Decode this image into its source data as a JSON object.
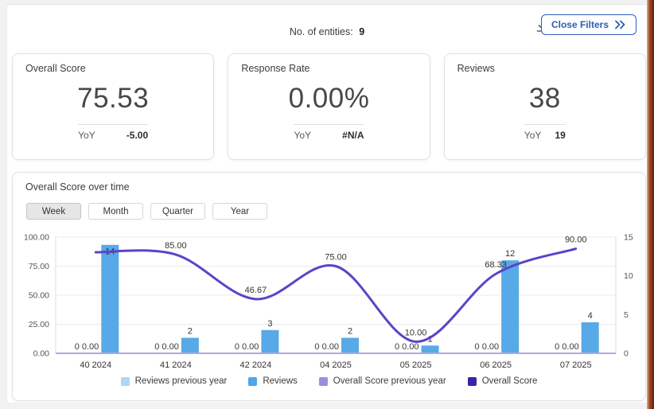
{
  "topbar": {
    "entities_label": "No. of entities:",
    "entities_value": "9",
    "close_filters_label": "Close Filters"
  },
  "kpis": [
    {
      "title": "Overall Score",
      "value": "75.53",
      "yoy_label": "YoY",
      "yoy_value": "-5.00"
    },
    {
      "title": "Response Rate",
      "value": "0.00%",
      "yoy_label": "YoY",
      "yoy_value": "#N/A"
    },
    {
      "title": "Reviews",
      "value": "38",
      "yoy_label": "YoY",
      "yoy_value": "19"
    }
  ],
  "chart_section": {
    "title": "Overall Score over time",
    "tabs": [
      {
        "label": "Week",
        "selected": true
      },
      {
        "label": "Month",
        "selected": false
      },
      {
        "label": "Quarter",
        "selected": false
      },
      {
        "label": "Year",
        "selected": false
      }
    ]
  },
  "chart_data": {
    "type": "combo",
    "categories": [
      "40 2024",
      "41 2024",
      "42 2024",
      "04 2025",
      "05 2025",
      "06 2025",
      "07 2025"
    ],
    "series": [
      {
        "name": "Reviews previous year",
        "type": "bar",
        "axis": "right",
        "values": [
          0,
          0,
          0,
          0,
          0,
          0,
          0
        ],
        "labels": [
          "0",
          "0",
          "0",
          "0",
          "0",
          "0",
          "0"
        ],
        "color": "#acd8f4"
      },
      {
        "name": "Reviews",
        "type": "bar",
        "axis": "right",
        "values": [
          14,
          2,
          3,
          2,
          1,
          12,
          4
        ],
        "labels": [
          "14",
          "2",
          "3",
          "2",
          "1",
          "12",
          "4"
        ],
        "color": "#58a9e7"
      },
      {
        "name": "Overall Score previous year",
        "type": "line",
        "axis": "left",
        "values": [
          0,
          0,
          0,
          0,
          0,
          0,
          0
        ],
        "labels": [
          "0.00",
          "0.00",
          "0.00",
          "0.00",
          "0.00",
          "0.00",
          "0.00"
        ],
        "color": "#b2a6e4"
      },
      {
        "name": "Overall Score",
        "type": "line",
        "axis": "left",
        "values": [
          87,
          85,
          46.67,
          75,
          10,
          68.33,
          90
        ],
        "labels": [
          null,
          "85.00",
          "46.67",
          "75.00",
          "10.00",
          "68.33",
          "90.00"
        ],
        "color": "#5b44c8"
      }
    ],
    "left_axis": {
      "min": 0,
      "max": 100,
      "ticks": [
        "100.00",
        "75.00",
        "50.00",
        "25.00",
        "0.00"
      ]
    },
    "right_axis": {
      "min": 0,
      "max": 15,
      "ticks": [
        "15",
        "10",
        "5",
        "0"
      ]
    },
    "zero_group_label": "0 0.00",
    "grid": true,
    "legend_position": "bottom"
  },
  "legend": [
    {
      "label": "Reviews previous year",
      "color": "#acd8f4"
    },
    {
      "label": "Reviews",
      "color": "#4fa5e5"
    },
    {
      "label": "Overall Score previous year",
      "color": "#9c8cda"
    },
    {
      "label": "Overall Score",
      "color": "#3b22a9"
    }
  ]
}
